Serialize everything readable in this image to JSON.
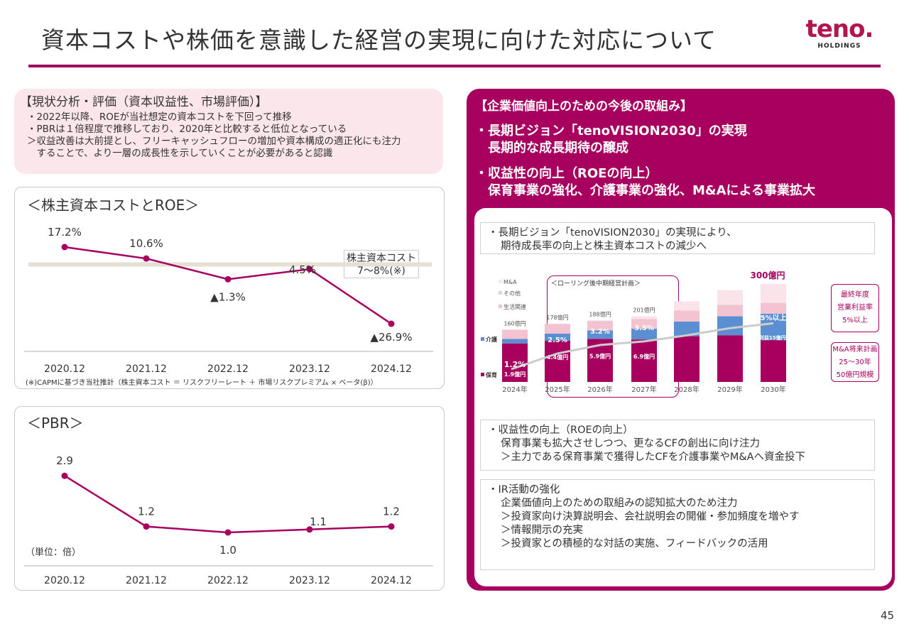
{
  "header": {
    "title": "資本コストや株価を意識した経営の実現に向けた対応について",
    "logo_text": "teno.",
    "logo_sub": "HOLDINGS",
    "accent": "#a8005f"
  },
  "analysis": {
    "heading": "【現状分析・評価（資本収益性、市場評価）】",
    "lines": [
      "・2022年以降、ROEが当社想定の資本コストを下回って推移",
      "・PBRは１倍程度で推移しており、2020年と比較すると低位となっている",
      "＞収益改善は大前提とし、フリーキャッシュフローの増加や資本構成の適正化にも注力",
      "　することで、より一層の成長性を示していくことが必要があると認識"
    ]
  },
  "roe_panel": {
    "title": "＜株主資本コストとROE＞",
    "cost_label_1": "株主資本コスト",
    "cost_label_2": "7～8%(※)",
    "footnote": "(※)CAPMに基づき当社推計（株主資本コスト ＝ リスクフリーレート ＋ 市場リスクプレミアム × ベータ(β)）"
  },
  "pbr_panel": {
    "title": "＜PBR＞",
    "unit": "（単位：倍）"
  },
  "right": {
    "heading": "【企業価値向上のための今後の取組み】",
    "bullet1_l1": "・長期ビジョン「tenoVISION2030」の実現",
    "bullet1_l2": "　長期的な成長期待の醸成",
    "bullet2_l1": "・収益性の向上（ROEの向上）",
    "bullet2_l2": "　保育事業の強化、介護事業の強化、M&Aによる事業拡大",
    "box1": [
      "・長期ビジョン「tenoVISION2030」の実現により、",
      "期待成長率の向上と株主資本コストの減少へ"
    ],
    "box2": [
      "・収益性の向上（ROEの向上）",
      "保育事業も拡大させしつつ、更なるCFの創出に向け注力",
      "＞主力である保育事業で獲得したCFを介護事業やM&Aへ資金投下"
    ],
    "box3": [
      "・IR活動の強化",
      "企業価値向上のための取組みの認知拡大のため注力",
      "＞投資家向け決算説明会、会社説明会の開催・参加頻度を増やす",
      "＞情報開示の充実",
      "＞投資家との積極的な対話の実施、フィードバックの活用"
    ]
  },
  "page_number": "45",
  "chart_data": [
    {
      "type": "line",
      "title": "＜株主資本コストとROE＞",
      "categories": [
        "2020.12",
        "2021.12",
        "2022.12",
        "2023.12",
        "2024.12"
      ],
      "values": [
        17.2,
        10.6,
        -1.3,
        4.5,
        -26.9
      ],
      "labels": [
        "17.2%",
        "10.6%",
        "▲1.3%",
        "4.5%",
        "▲26.9%"
      ],
      "unit": "%",
      "reference_band": {
        "label": "株主資本コスト 7～8%(※)",
        "range": [
          7,
          8
        ]
      },
      "color": "#a8005f",
      "grid": false
    },
    {
      "type": "line",
      "title": "＜PBR＞",
      "categories": [
        "2020.12",
        "2021.12",
        "2022.12",
        "2023.12",
        "2024.12"
      ],
      "values": [
        2.9,
        1.2,
        1.0,
        1.1,
        1.2
      ],
      "labels": [
        "2.9",
        "1.2",
        "1.0",
        "1.1",
        "1.2"
      ],
      "unit": "倍",
      "color": "#a8005f",
      "grid": false
    },
    {
      "type": "bar",
      "stacked": true,
      "note": "＜ローリング後中期経営計画＞",
      "categories": [
        "2024年",
        "2025年",
        "2026年",
        "2027年",
        "2028年",
        "2029年",
        "2030年"
      ],
      "totals_labels": [
        "160億円",
        "178億円",
        "188億円",
        "201億円",
        "",
        "",
        "300億円"
      ],
      "series": [
        {
          "name": "保育",
          "color": "#a8005f",
          "values": [
            118,
            126,
            132,
            130,
            140,
            143,
            128
          ]
        },
        {
          "name": "介護",
          "color": "#5b8fd1",
          "values": [
            14,
            22,
            26,
            33,
            45,
            58,
            81
          ]
        },
        {
          "name": "生活関連",
          "color": "#f3c3d1",
          "values": [
            28,
            30,
            28,
            30,
            34,
            34,
            33
          ]
        },
        {
          "name": "その他",
          "color": "#e6d3da",
          "values": [
            0,
            0,
            2,
            0,
            0,
            2,
            0
          ]
        },
        {
          "name": "M&A",
          "color": "#fbe3ea",
          "values": [
            0,
            0,
            0,
            8,
            28,
            44,
            58
          ]
        }
      ],
      "margin_line": {
        "color": "#cccccc",
        "values": [
          1.2,
          2.5,
          3.2,
          3.5,
          4.0,
          4.6,
          5.0
        ],
        "labels": [
          "1.2%",
          "2.5%",
          "3.2%",
          "3.5%",
          "",
          "",
          "5%以上"
        ]
      },
      "profit_labels": [
        "1.9億円",
        "4.4億円",
        "5.9億円",
        "6.9億円",
        "",
        "",
        "営業利益15億円 以上"
      ],
      "side_notes": [
        [
          "最終年度",
          "営業利益率",
          "5%以上"
        ],
        [
          "M&A将来計画",
          "25～30年",
          "50億円規模"
        ]
      ]
    }
  ]
}
